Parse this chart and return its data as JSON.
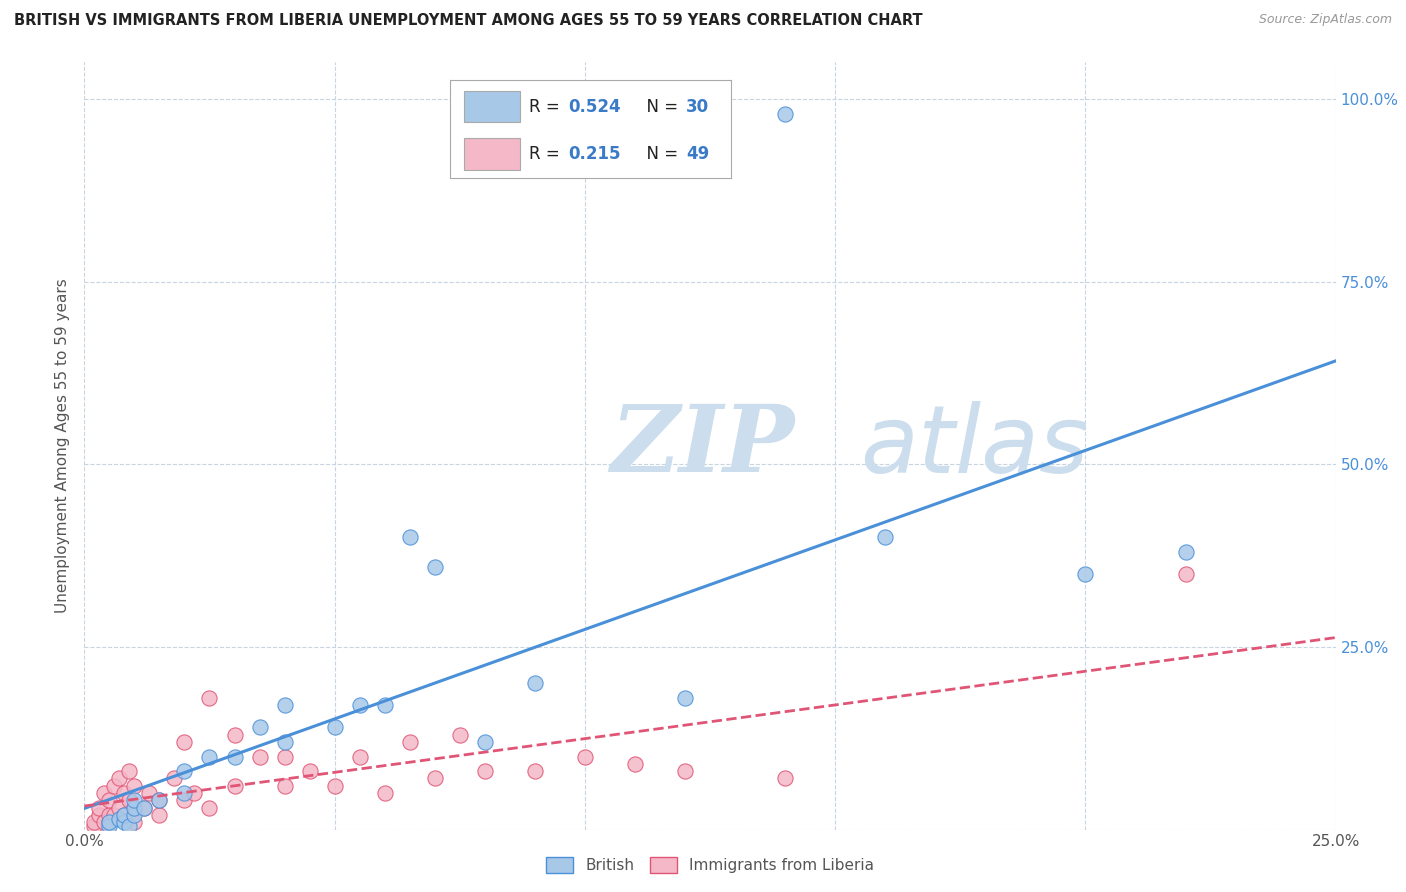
{
  "title": "BRITISH VS IMMIGRANTS FROM LIBERIA UNEMPLOYMENT AMONG AGES 55 TO 59 YEARS CORRELATION CHART",
  "source": "Source: ZipAtlas.com",
  "ylabel": "Unemployment Among Ages 55 to 59 years",
  "xlim": [
    0.0,
    0.25
  ],
  "ylim": [
    0.0,
    1.05
  ],
  "xticks": [
    0.0,
    0.05,
    0.1,
    0.15,
    0.2,
    0.25
  ],
  "yticks": [
    0.0,
    0.25,
    0.5,
    0.75,
    1.0
  ],
  "xtick_labels": [
    "0.0%",
    "",
    "",
    "",
    "",
    "25.0%"
  ],
  "ytick_labels": [
    "",
    "25.0%",
    "50.0%",
    "75.0%",
    "100.0%"
  ],
  "british_R": 0.524,
  "british_N": 30,
  "liberia_R": 0.215,
  "liberia_N": 49,
  "british_color": "#a8c8e8",
  "liberia_color": "#f4b8c8",
  "british_line_color": "#4a90d9",
  "liberia_line_color": "#e05575",
  "watermark_color": "#ccdded",
  "legend_text_color": "#3a7bc8",
  "background_color": "#ffffff",
  "grid_color": "#c8d4e0",
  "british_x": [
    0.005,
    0.005,
    0.007,
    0.008,
    0.008,
    0.009,
    0.01,
    0.01,
    0.01,
    0.012,
    0.015,
    0.02,
    0.02,
    0.025,
    0.03,
    0.035,
    0.04,
    0.04,
    0.05,
    0.055,
    0.06,
    0.065,
    0.07,
    0.08,
    0.09,
    0.12,
    0.14,
    0.16,
    0.2,
    0.22
  ],
  "british_y": [
    0.005,
    0.01,
    0.015,
    0.01,
    0.02,
    0.005,
    0.02,
    0.03,
    0.04,
    0.03,
    0.04,
    0.05,
    0.08,
    0.1,
    0.1,
    0.14,
    0.12,
    0.17,
    0.14,
    0.17,
    0.17,
    0.4,
    0.36,
    0.12,
    0.2,
    0.18,
    0.98,
    0.4,
    0.35,
    0.38
  ],
  "liberia_x": [
    0.002,
    0.002,
    0.003,
    0.003,
    0.004,
    0.004,
    0.005,
    0.005,
    0.005,
    0.006,
    0.006,
    0.007,
    0.007,
    0.008,
    0.008,
    0.009,
    0.009,
    0.01,
    0.01,
    0.01,
    0.012,
    0.013,
    0.015,
    0.015,
    0.018,
    0.02,
    0.02,
    0.022,
    0.025,
    0.025,
    0.03,
    0.03,
    0.035,
    0.04,
    0.04,
    0.045,
    0.05,
    0.055,
    0.06,
    0.065,
    0.07,
    0.075,
    0.08,
    0.09,
    0.1,
    0.11,
    0.12,
    0.14,
    0.22
  ],
  "liberia_y": [
    0.005,
    0.01,
    0.02,
    0.03,
    0.01,
    0.05,
    0.01,
    0.02,
    0.04,
    0.02,
    0.06,
    0.03,
    0.07,
    0.02,
    0.05,
    0.04,
    0.08,
    0.01,
    0.03,
    0.06,
    0.03,
    0.05,
    0.02,
    0.04,
    0.07,
    0.04,
    0.12,
    0.05,
    0.18,
    0.03,
    0.13,
    0.06,
    0.1,
    0.06,
    0.1,
    0.08,
    0.06,
    0.1,
    0.05,
    0.12,
    0.07,
    0.13,
    0.08,
    0.08,
    0.1,
    0.09,
    0.08,
    0.07,
    0.35
  ]
}
